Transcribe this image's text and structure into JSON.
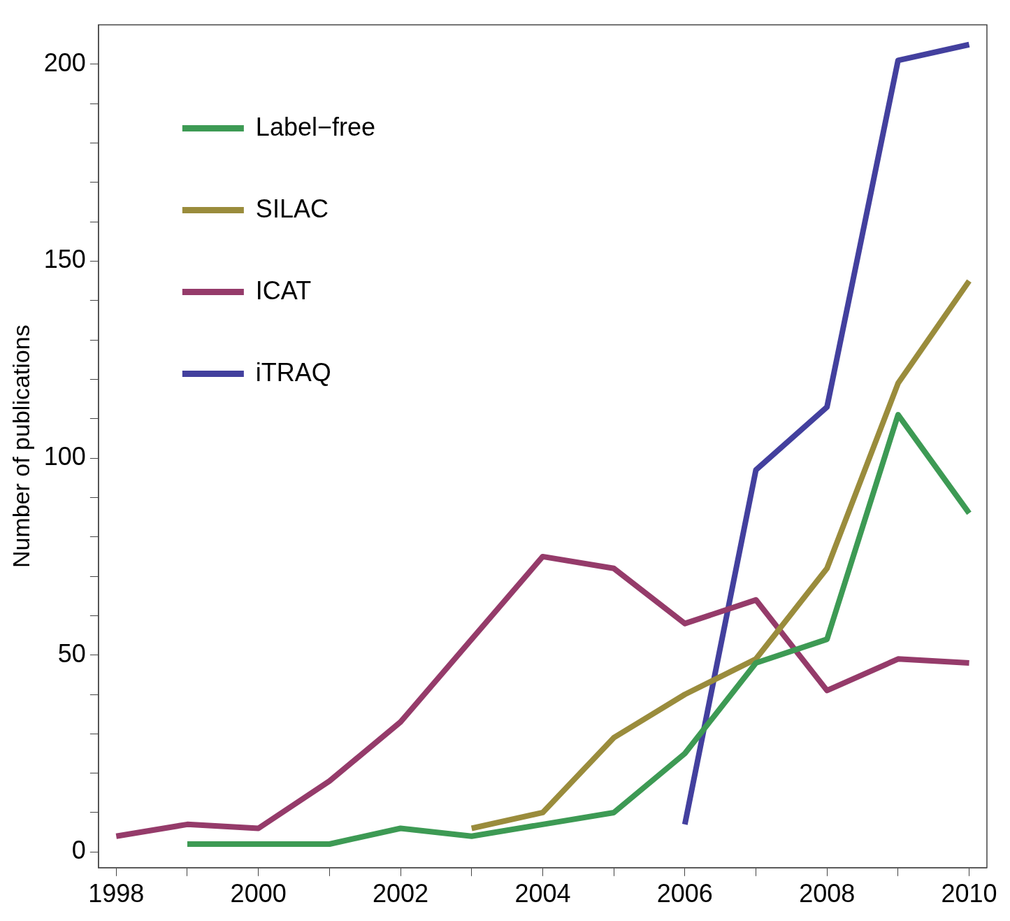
{
  "chart_data": {
    "type": "line",
    "ylabel": "Number of publications",
    "x": [
      1998,
      1999,
      2000,
      2001,
      2002,
      2003,
      2004,
      2005,
      2006,
      2007,
      2008,
      2009,
      2010
    ],
    "series": [
      {
        "name": "Label−free",
        "color": "#3d9a54",
        "values": [
          null,
          2,
          2,
          2,
          6,
          4,
          7,
          10,
          25,
          48,
          54,
          111,
          86
        ]
      },
      {
        "name": "SILAC",
        "color": "#9a8c3c",
        "values": [
          null,
          null,
          null,
          null,
          null,
          6,
          10,
          29,
          40,
          49,
          72,
          119,
          145
        ]
      },
      {
        "name": "ICAT",
        "color": "#953b6a",
        "values": [
          4,
          7,
          6,
          18,
          33,
          54,
          75,
          72,
          58,
          64,
          41,
          49,
          48
        ]
      },
      {
        "name": "iTRAQ",
        "color": "#43409e",
        "values": [
          null,
          null,
          null,
          null,
          null,
          null,
          null,
          null,
          7,
          97,
          113,
          201,
          205
        ]
      }
    ],
    "xlim": [
      1997.75,
      2010.25
    ],
    "xticks": [
      1998,
      {
        "value": 1999,
        "label": null
      },
      2000,
      {
        "value": 2001,
        "label": null
      },
      2002,
      {
        "value": 2003,
        "label": null
      },
      2004,
      {
        "value": 2005,
        "label": null
      },
      2006,
      {
        "value": 2007,
        "label": null
      },
      2008,
      {
        "value": 2009,
        "label": null
      },
      2010
    ],
    "ylim": [
      -4,
      210
    ],
    "yticks": [
      0,
      {
        "value": 10,
        "label": null
      },
      {
        "value": 20,
        "label": null
      },
      {
        "value": 30,
        "label": null
      },
      {
        "value": 40,
        "label": null
      },
      50,
      {
        "value": 60,
        "label": null
      },
      {
        "value": 70,
        "label": null
      },
      {
        "value": 80,
        "label": null
      },
      {
        "value": 90,
        "label": null
      },
      100,
      {
        "value": 110,
        "label": null
      },
      {
        "value": 120,
        "label": null
      },
      {
        "value": 130,
        "label": null
      },
      {
        "value": 140,
        "label": null
      },
      150,
      {
        "value": 160,
        "label": null
      },
      {
        "value": 170,
        "label": null
      },
      {
        "value": 180,
        "label": null
      },
      {
        "value": 190,
        "label": null
      },
      200
    ],
    "grid": false,
    "legend": "top left",
    "marker": "none",
    "line_style": "solid"
  }
}
